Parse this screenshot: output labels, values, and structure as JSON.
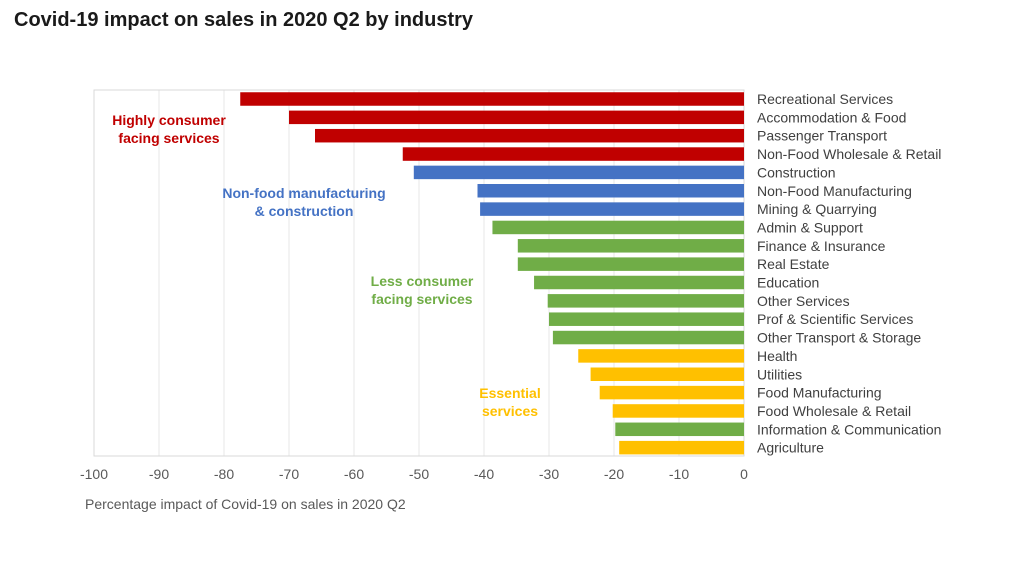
{
  "title": "Covid-19 impact on sales in 2020 Q2 by industry",
  "colors": {
    "highly_consumer": "#c00000",
    "manufacturing": "#4472c4",
    "less_consumer": "#70ad47",
    "essential": "#ffc000"
  },
  "chart_data": {
    "type": "bar",
    "orientation": "horizontal",
    "title": "Covid-19 impact on sales in 2020 Q2 by industry",
    "xlabel": "Percentage impact of Covid-19 on sales in 2020 Q2",
    "ylabel": "",
    "xlim": [
      -100,
      0
    ],
    "x_ticks": [
      "-100",
      "-90",
      "-80",
      "-70",
      "-60",
      "-50",
      "-40",
      "-30",
      "-20",
      "-10",
      "0"
    ],
    "grid": true,
    "categories": [
      "Recreational Services",
      "Accommodation & Food",
      "Passenger Transport",
      "Non-Food Wholesale & Retail",
      "Construction",
      "Non-Food Manufacturing",
      "Mining & Quarrying",
      "Admin & Support",
      "Finance & Insurance",
      "Real Estate",
      "Education",
      "Other Services",
      "Prof & Scientific Services",
      "Other Transport & Storage",
      "Health",
      "Utilities",
      "Food Manufacturing",
      "Food Wholesale & Retail",
      "Information & Communication",
      "Agriculture"
    ],
    "values": [
      -77.5,
      -70,
      -66,
      -52.5,
      -50.8,
      -41,
      -40.6,
      -38.7,
      -34.8,
      -34.8,
      -32.3,
      -30.2,
      -30,
      -29.4,
      -25.5,
      -23.6,
      -22.2,
      -20.2,
      -19.8,
      -19.2
    ],
    "groups": [
      "highly_consumer",
      "highly_consumer",
      "highly_consumer",
      "highly_consumer",
      "manufacturing",
      "manufacturing",
      "manufacturing",
      "less_consumer",
      "less_consumer",
      "less_consumer",
      "less_consumer",
      "less_consumer",
      "less_consumer",
      "less_consumer",
      "essential",
      "essential",
      "essential",
      "essential",
      "less_consumer",
      "essential"
    ],
    "annotations": [
      {
        "group": "highly_consumer",
        "lines": [
          "Highly consumer",
          "facing services"
        ]
      },
      {
        "group": "manufacturing",
        "lines": [
          "Non-food manufacturing",
          "& construction"
        ]
      },
      {
        "group": "less_consumer",
        "lines": [
          "Less consumer",
          "facing services"
        ]
      },
      {
        "group": "essential",
        "lines": [
          "Essential",
          "services"
        ]
      }
    ]
  }
}
